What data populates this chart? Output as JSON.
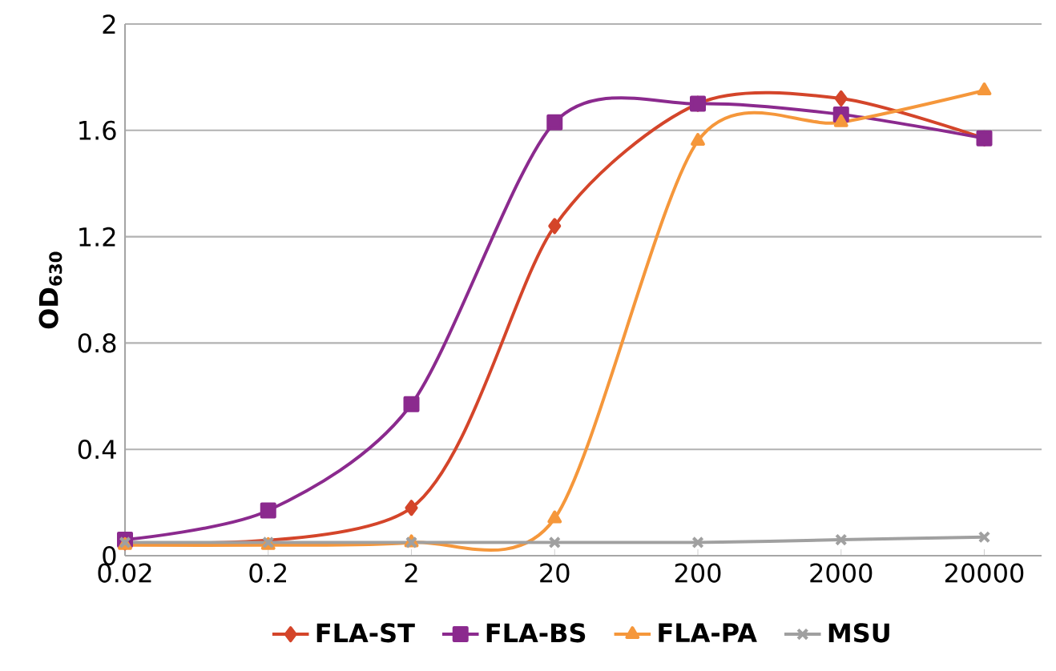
{
  "chart_data": {
    "type": "line",
    "ylabel": "OD$_{630}$",
    "categories": [
      "0.02",
      "0.2",
      "2",
      "20",
      "200",
      "2000",
      "20000"
    ],
    "series": [
      {
        "name": "FLA-ST",
        "color": "#d4452a",
        "marker": "diamond",
        "values": [
          0.05,
          null,
          0.18,
          1.24,
          1.7,
          1.72,
          1.57
        ]
      },
      {
        "name": "FLA-BS",
        "color": "#8b2a8e",
        "marker": "square",
        "values": [
          0.06,
          0.17,
          0.57,
          1.63,
          1.7,
          1.66,
          1.57
        ]
      },
      {
        "name": "FLA-PA",
        "color": "#f5973b",
        "marker": "triangle",
        "values": [
          0.04,
          0.04,
          0.05,
          0.14,
          1.56,
          1.63,
          1.75
        ]
      },
      {
        "name": "MSU",
        "color": "#a0a0a0",
        "marker": "cross",
        "values": [
          0.05,
          0.05,
          0.05,
          0.05,
          0.05,
          0.06,
          0.07
        ]
      }
    ],
    "ylim": [
      0,
      2
    ],
    "yticks": [
      0,
      0.4,
      0.8,
      1.2,
      1.6,
      2
    ],
    "grid": "y",
    "legend": "bottom",
    "line_style": "solid"
  }
}
